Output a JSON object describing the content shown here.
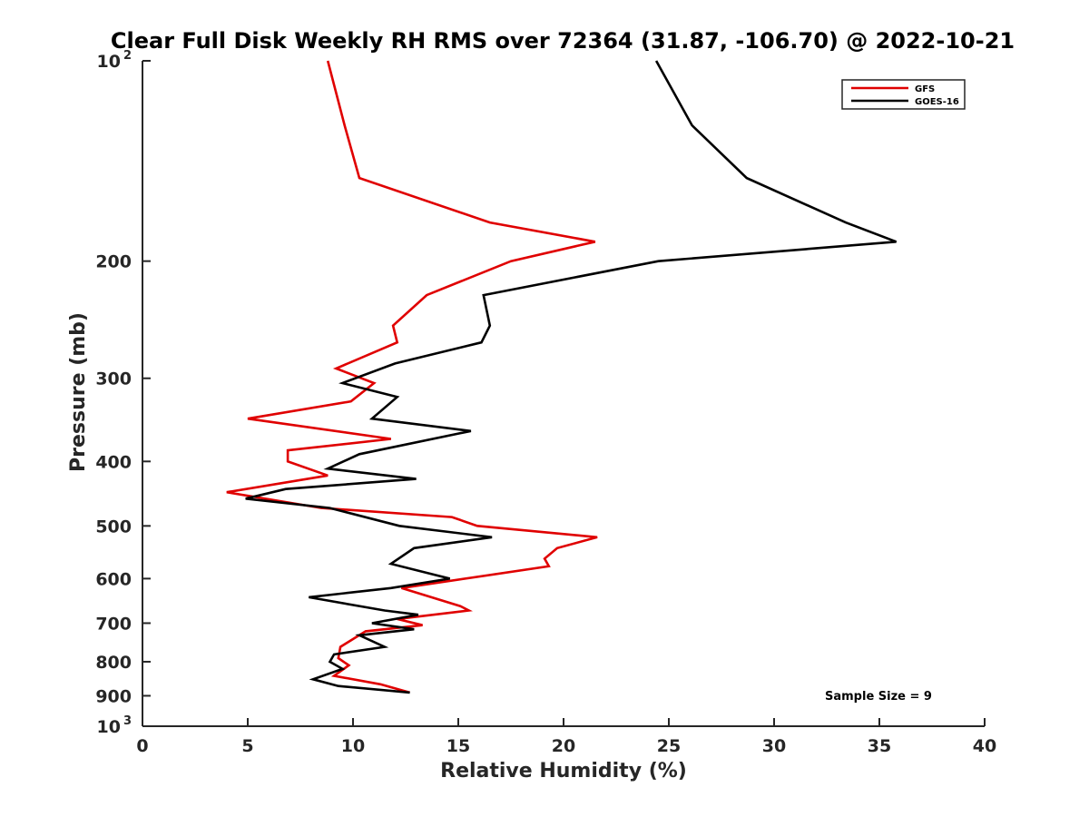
{
  "chart_data": {
    "type": "line",
    "title": "Clear Full Disk Weekly RH RMS over 72364 (31.87, -106.70) @ 2022-10-21",
    "xlabel": "Relative Humidity (%)",
    "ylabel": "Pressure (mb)",
    "xlim": [
      0,
      40
    ],
    "ylim": [
      100,
      1000
    ],
    "y_scale": "log",
    "y_reversed": true,
    "grid": false,
    "x_ticks": [
      0,
      5,
      10,
      15,
      20,
      25,
      30,
      35,
      40
    ],
    "x_tick_labels": [
      "0",
      "5",
      "10",
      "15",
      "20",
      "25",
      "30",
      "35",
      "40"
    ],
    "y_ticks": [
      100,
      200,
      300,
      400,
      500,
      600,
      700,
      800,
      900,
      1000
    ],
    "y_tick_labels": [
      {
        "base": "10",
        "sup": "2"
      },
      {
        "base": "200"
      },
      {
        "base": "300"
      },
      {
        "base": "400"
      },
      {
        "base": "500"
      },
      {
        "base": "600"
      },
      {
        "base": "700"
      },
      {
        "base": "800"
      },
      {
        "base": "900"
      },
      {
        "base": "10",
        "sup": "3"
      }
    ],
    "legend_position": "top-right",
    "annotation": "Sample Size = 9",
    "series": [
      {
        "name": "GFS",
        "color": "#e00000",
        "points": [
          [
            8.8,
            100
          ],
          [
            9.6,
            125
          ],
          [
            10.3,
            150
          ],
          [
            16.5,
            175
          ],
          [
            21.5,
            187
          ],
          [
            17.5,
            200
          ],
          [
            13.5,
            225
          ],
          [
            11.9,
            250
          ],
          [
            12.1,
            265
          ],
          [
            9.2,
            290
          ],
          [
            11.0,
            305
          ],
          [
            9.9,
            325
          ],
          [
            5.0,
            345
          ],
          [
            11.8,
            370
          ],
          [
            6.9,
            385
          ],
          [
            6.9,
            400
          ],
          [
            8.8,
            420
          ],
          [
            4.0,
            445
          ],
          [
            8.5,
            470
          ],
          [
            14.7,
            485
          ],
          [
            15.9,
            500
          ],
          [
            21.6,
            520
          ],
          [
            19.7,
            540
          ],
          [
            19.1,
            560
          ],
          [
            19.3,
            575
          ],
          [
            12.3,
            620
          ],
          [
            15.1,
            660
          ],
          [
            15.5,
            670
          ],
          [
            12.1,
            690
          ],
          [
            13.3,
            705
          ],
          [
            10.6,
            720
          ],
          [
            9.4,
            760
          ],
          [
            9.3,
            790
          ],
          [
            9.8,
            810
          ],
          [
            9.1,
            840
          ],
          [
            11.3,
            865
          ],
          [
            12.7,
            890
          ]
        ]
      },
      {
        "name": "GOES-16",
        "color": "#000000",
        "points": [
          [
            24.4,
            100
          ],
          [
            26.1,
            125
          ],
          [
            28.7,
            150
          ],
          [
            33.4,
            175
          ],
          [
            35.8,
            187
          ],
          [
            24.5,
            200
          ],
          [
            16.2,
            225
          ],
          [
            16.5,
            250
          ],
          [
            16.1,
            265
          ],
          [
            12.0,
            285
          ],
          [
            9.5,
            305
          ],
          [
            12.1,
            320
          ],
          [
            10.9,
            345
          ],
          [
            15.6,
            360
          ],
          [
            10.3,
            390
          ],
          [
            8.8,
            410
          ],
          [
            13.0,
            425
          ],
          [
            6.8,
            440
          ],
          [
            4.9,
            455
          ],
          [
            8.9,
            470
          ],
          [
            12.2,
            500
          ],
          [
            16.6,
            520
          ],
          [
            12.9,
            540
          ],
          [
            11.8,
            570
          ],
          [
            14.6,
            600
          ],
          [
            11.8,
            620
          ],
          [
            7.9,
            640
          ],
          [
            11.5,
            670
          ],
          [
            13.1,
            680
          ],
          [
            10.9,
            700
          ],
          [
            12.9,
            715
          ],
          [
            10.3,
            730
          ],
          [
            11.5,
            760
          ],
          [
            9.1,
            780
          ],
          [
            8.9,
            800
          ],
          [
            9.5,
            820
          ],
          [
            8.1,
            850
          ],
          [
            9.3,
            870
          ],
          [
            12.7,
            890
          ]
        ]
      }
    ]
  }
}
